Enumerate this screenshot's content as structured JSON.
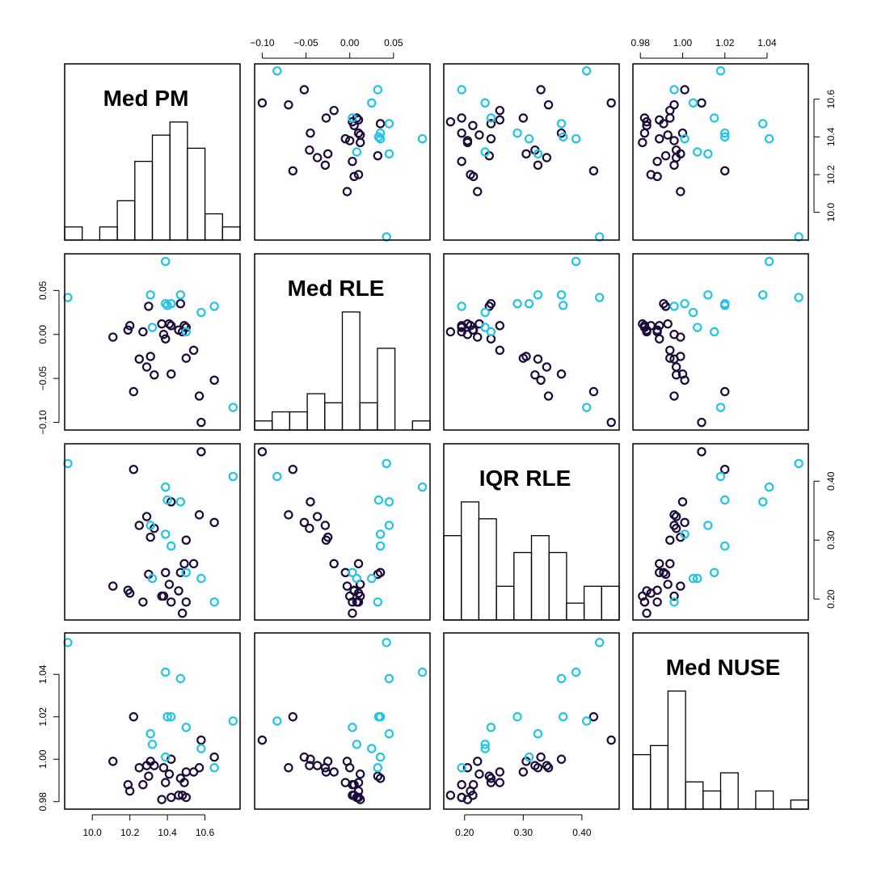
{
  "chart_data": {
    "type": "scatter",
    "variables": [
      {
        "name": "Med PM",
        "lim": [
          9.87,
          10.77
        ],
        "ticks": [
          10.0,
          10.2,
          10.4,
          10.6
        ],
        "tick_labels": [
          "10.0",
          "10.2",
          "10.4",
          "10.6"
        ]
      },
      {
        "name": "Med RLE",
        "lim": [
          -0.105,
          0.088
        ],
        "ticks": [
          -0.1,
          -0.05,
          0.0,
          0.05
        ],
        "tick_labels": [
          "−0.10",
          "−0.05",
          "0.00",
          "0.05"
        ]
      },
      {
        "name": "IQR RLE",
        "lim": [
          0.17,
          0.458
        ],
        "ticks": [
          0.2,
          0.3,
          0.4
        ],
        "tick_labels": [
          "0.20",
          "0.30",
          "0.40"
        ]
      },
      {
        "name": "Med NUSE",
        "lim": [
          0.978,
          1.058
        ],
        "ticks": [
          0.98,
          1.0,
          1.02,
          1.04
        ],
        "tick_labels": [
          "0.98",
          "1.00",
          "1.02",
          "1.04"
        ]
      }
    ],
    "groups": [
      {
        "color": "#1b0a3a"
      },
      {
        "color": "#22c4e6"
      }
    ],
    "observations": [
      {
        "g": 0,
        "v": [
          10.58,
          -0.1,
          0.45,
          1.009
        ]
      },
      {
        "g": 0,
        "v": [
          10.22,
          -0.065,
          0.42,
          1.02
        ]
      },
      {
        "g": 0,
        "v": [
          10.65,
          -0.052,
          0.33,
          1.001
        ]
      },
      {
        "g": 0,
        "v": [
          10.57,
          -0.07,
          0.343,
          0.996
        ]
      },
      {
        "g": 0,
        "v": [
          10.42,
          -0.045,
          0.365,
          1.0
        ]
      },
      {
        "g": 0,
        "v": [
          10.33,
          -0.046,
          0.32,
          0.997
        ]
      },
      {
        "g": 0,
        "v": [
          10.29,
          -0.037,
          0.34,
          0.997
        ]
      },
      {
        "g": 0,
        "v": [
          10.5,
          -0.027,
          0.3,
          0.994
        ]
      },
      {
        "g": 0,
        "v": [
          10.31,
          -0.025,
          0.305,
          0.999
        ]
      },
      {
        "g": 0,
        "v": [
          10.25,
          -0.028,
          0.325,
          0.996
        ]
      },
      {
        "g": 0,
        "v": [
          10.54,
          -0.018,
          0.26,
          0.994
        ]
      },
      {
        "g": 0,
        "v": [
          10.49,
          0.01,
          0.26,
          0.989
        ]
      },
      {
        "g": 0,
        "v": [
          10.39,
          -0.005,
          0.245,
          0.989
        ]
      },
      {
        "g": 0,
        "v": [
          10.3,
          0.032,
          0.242,
          0.992
        ]
      },
      {
        "g": 0,
        "v": [
          10.47,
          0.035,
          0.245,
          0.991
        ]
      },
      {
        "g": 0,
        "v": [
          10.11,
          -0.003,
          0.222,
          0.999
        ]
      },
      {
        "g": 0,
        "v": [
          10.41,
          0.012,
          0.225,
          0.993
        ]
      },
      {
        "g": 0,
        "v": [
          10.38,
          0.0,
          0.205,
          0.996
        ]
      },
      {
        "g": 0,
        "v": [
          10.46,
          0.005,
          0.214,
          0.983
        ]
      },
      {
        "g": 0,
        "v": [
          10.2,
          0.01,
          0.21,
          0.985
        ]
      },
      {
        "g": 0,
        "v": [
          10.19,
          0.005,
          0.215,
          0.988
        ]
      },
      {
        "g": 0,
        "v": [
          10.27,
          0.003,
          0.195,
          0.988
        ]
      },
      {
        "g": 0,
        "v": [
          10.42,
          0.01,
          0.195,
          0.982
        ]
      },
      {
        "g": 0,
        "v": [
          10.48,
          0.003,
          0.176,
          0.983
        ]
      },
      {
        "g": 0,
        "v": [
          10.5,
          0.008,
          0.195,
          0.982
        ]
      },
      {
        "g": 0,
        "v": [
          10.37,
          0.012,
          0.205,
          0.981
        ]
      },
      {
        "g": 1,
        "v": [
          9.87,
          0.042,
          0.43,
          1.055
        ]
      },
      {
        "g": 1,
        "v": [
          10.75,
          -0.083,
          0.408,
          1.018
        ]
      },
      {
        "g": 1,
        "v": [
          10.39,
          0.083,
          0.39,
          1.041
        ]
      },
      {
        "g": 1,
        "v": [
          10.47,
          0.045,
          0.365,
          1.038
        ]
      },
      {
        "g": 1,
        "v": [
          10.4,
          0.033,
          0.368,
          1.02
        ]
      },
      {
        "g": 1,
        "v": [
          10.31,
          0.045,
          0.325,
          1.012
        ]
      },
      {
        "g": 1,
        "v": [
          10.39,
          0.035,
          0.31,
          1.001
        ]
      },
      {
        "g": 1,
        "v": [
          10.42,
          0.035,
          0.29,
          1.02
        ]
      },
      {
        "g": 1,
        "v": [
          10.32,
          0.008,
          0.235,
          1.007
        ]
      },
      {
        "g": 1,
        "v": [
          10.58,
          0.025,
          0.235,
          1.005
        ]
      },
      {
        "g": 1,
        "v": [
          10.5,
          0.003,
          0.245,
          1.015
        ]
      },
      {
        "g": 1,
        "v": [
          10.65,
          0.032,
          0.195,
          0.996
        ]
      }
    ]
  }
}
